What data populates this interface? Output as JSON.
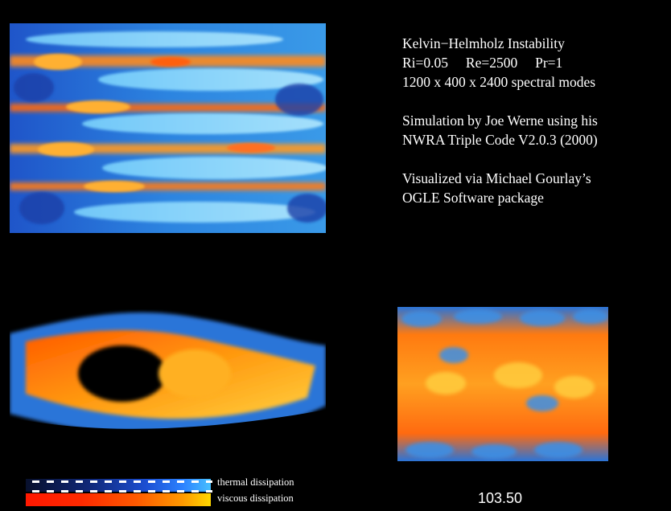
{
  "info": {
    "block1": [
      "Kelvin−Helmholz Instability",
      "Ri=0.05     Re=2500     Pr=1",
      "1200 x 400 x 2400 spectral modes"
    ],
    "block2": [
      "Simulation by Joe Werne using his",
      "NWRA Triple Code V2.0.3 (2000)"
    ],
    "block3": [
      "Visualized via Michael Gourlay’s",
      "OGLE Software package"
    ]
  },
  "legend": {
    "thermal_label": "thermal dissipation",
    "viscous_label": "viscous dissipation",
    "thermal_colors": [
      "#08102c",
      "#10287a",
      "#1c4fd2",
      "#48c0ff"
    ],
    "viscous_colors": [
      "#ff1800",
      "#ff5a00",
      "#ff9a00",
      "#ffd800"
    ]
  },
  "time": "103.50",
  "colors": {
    "background": "#000000",
    "thermal": "#2c82ff",
    "viscous": "#ff7a00"
  }
}
